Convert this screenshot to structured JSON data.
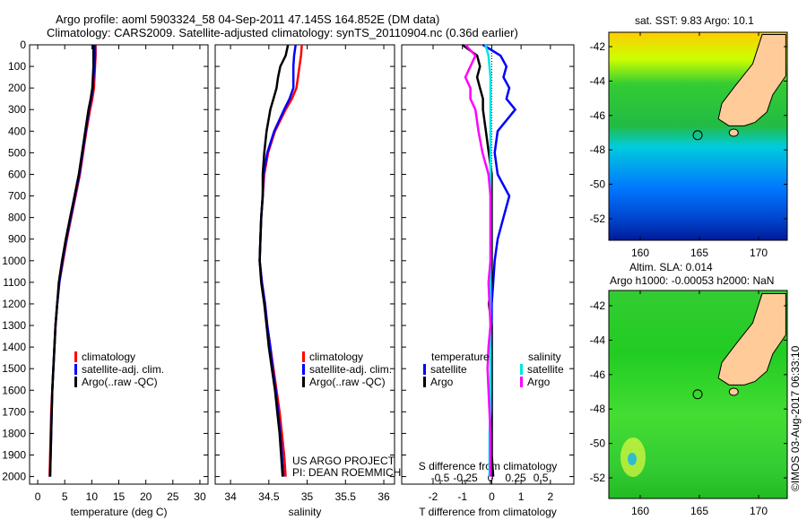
{
  "title": {
    "line1": "Argo profile: aoml 5903324_58 04-Sep-2011 47.145S 164.852E (DM data)",
    "line2": "Climatology: CARS2009. Satellite-adjusted climatology: synTS_20110904.nc (0.36d earlier)"
  },
  "colors": {
    "climatology": "#ff0000",
    "satellite": "#0000ff",
    "argo": "#000000",
    "s_satellite": "#00e5e5",
    "s_argo": "#ff00ff",
    "land": "#ffcc99"
  },
  "chart_data": [
    {
      "type": "line",
      "id": "temperature",
      "xlabel": "temperature (deg C)",
      "ylabel": "depth",
      "xlim": [
        -1.5,
        31.5
      ],
      "ylim": [
        2035,
        0
      ],
      "xticks": [
        0,
        5,
        10,
        15,
        20,
        25,
        30
      ],
      "yticks": [
        0,
        100,
        200,
        300,
        400,
        500,
        600,
        700,
        800,
        900,
        1000,
        1100,
        1200,
        1300,
        1400,
        1500,
        1600,
        1700,
        1800,
        1900,
        2000
      ],
      "depth": [
        0,
        50,
        100,
        150,
        200,
        250,
        300,
        400,
        500,
        600,
        700,
        800,
        900,
        1000,
        1100,
        1200,
        1300,
        1400,
        1500,
        1600,
        1700,
        1800,
        1900,
        2000
      ],
      "series": [
        {
          "name": "climatology",
          "color": "#ff0000",
          "values": [
            10.7,
            10.7,
            10.6,
            10.5,
            10.4,
            10.1,
            9.7,
            9.0,
            8.4,
            7.8,
            7.0,
            6.2,
            5.4,
            4.7,
            4.0,
            3.6,
            3.3,
            3.1,
            2.9,
            2.7,
            2.5,
            2.4,
            2.3,
            2.2
          ]
        },
        {
          "name": "satellite-adj. clim.",
          "color": "#0000ff",
          "values": [
            10.6,
            10.6,
            10.5,
            10.3,
            10.2,
            9.9,
            9.5,
            8.9,
            8.3,
            7.7,
            6.9,
            6.1,
            5.3,
            4.6,
            4.0,
            3.6,
            3.3,
            3.1,
            2.9,
            2.7,
            2.6,
            2.5,
            2.4,
            2.3
          ]
        },
        {
          "name": "Argo(..raw -QC)",
          "color": "#000000",
          "values": [
            10.3,
            10.3,
            10.3,
            10.2,
            10.1,
            9.8,
            9.4,
            8.8,
            8.2,
            7.6,
            6.8,
            6.0,
            5.2,
            4.5,
            3.9,
            3.6,
            3.3,
            3.1,
            2.9,
            2.7,
            2.6,
            2.5,
            2.4,
            2.3
          ]
        }
      ]
    },
    {
      "type": "line",
      "id": "salinity",
      "xlabel": "salinity",
      "ylabel": "depth",
      "xlim": [
        33.8,
        36.14
      ],
      "ylim": [
        2035,
        0
      ],
      "xticks": [
        34,
        34.5,
        35,
        35.5,
        36
      ],
      "depth": [
        0,
        50,
        100,
        150,
        200,
        250,
        300,
        400,
        500,
        600,
        700,
        800,
        900,
        1000,
        1100,
        1200,
        1300,
        1400,
        1500,
        1600,
        1700,
        1800,
        1900,
        2000
      ],
      "series": [
        {
          "name": "climatology",
          "color": "#ff0000",
          "values": [
            34.93,
            34.92,
            34.9,
            34.88,
            34.86,
            34.8,
            34.72,
            34.58,
            34.49,
            34.44,
            34.42,
            34.4,
            34.39,
            34.38,
            34.41,
            34.45,
            34.48,
            34.52,
            34.56,
            34.6,
            34.64,
            34.67,
            34.7,
            34.72
          ]
        },
        {
          "name": "satellite-adj. clim.",
          "color": "#0000ff",
          "values": [
            34.85,
            34.83,
            34.82,
            34.82,
            34.82,
            34.77,
            34.7,
            34.57,
            34.48,
            34.43,
            34.42,
            34.4,
            34.39,
            34.38,
            34.41,
            34.45,
            34.48,
            34.52,
            34.55,
            34.59,
            34.62,
            34.65,
            34.67,
            34.69
          ]
        },
        {
          "name": "Argo(..raw -QC)",
          "color": "#000000",
          "values": [
            34.75,
            34.72,
            34.65,
            34.62,
            34.6,
            34.56,
            34.52,
            34.47,
            34.44,
            34.42,
            34.42,
            34.4,
            34.39,
            34.38,
            34.4,
            34.44,
            34.47,
            34.5,
            34.54,
            34.58,
            34.61,
            34.64,
            34.66,
            34.68
          ]
        }
      ],
      "annotation": [
        "US ARGO PROJECT",
        "PI: DEAN ROEMMICH"
      ]
    },
    {
      "type": "line",
      "id": "difference",
      "xlabel": "T difference from climatology",
      "x2label": "S difference from climatology",
      "xlim": [
        -3.07,
        2.8
      ],
      "x2lim": [
        -0.884,
        0.83
      ],
      "ylim": [
        2035,
        0
      ],
      "xticks": [
        -2,
        -1,
        0,
        1,
        2
      ],
      "x2ticks": [
        "-0.5",
        "-0.25",
        "0",
        "0.25",
        "0.5"
      ],
      "depth": [
        0,
        50,
        100,
        150,
        200,
        250,
        300,
        400,
        500,
        600,
        700,
        800,
        900,
        1000,
        1100,
        1200,
        1300,
        1400,
        1500,
        1600,
        1700,
        1800,
        1900,
        2000
      ],
      "legend_headers": [
        "temperature",
        "salinity"
      ],
      "series": [
        {
          "name": "satellite",
          "group": "temperature",
          "axis": "T",
          "color": "#0000ff",
          "values": [
            -0.3,
            0.3,
            0.5,
            0.4,
            0.6,
            0.5,
            0.8,
            0.2,
            0.1,
            0.2,
            0.6,
            0.4,
            0.2,
            0.1,
            0.05,
            0,
            0,
            0,
            0,
            0,
            0,
            0,
            0,
            0
          ]
        },
        {
          "name": "Argo",
          "group": "temperature",
          "axis": "T",
          "color": "#000000",
          "values": [
            -1.0,
            -0.5,
            -0.4,
            -0.5,
            -0.4,
            -0.3,
            -0.3,
            -0.2,
            -0.1,
            0,
            0,
            0,
            0,
            0,
            0,
            -0.1,
            0,
            0,
            0,
            0,
            0,
            0,
            0,
            0.05
          ]
        },
        {
          "name": "satellite",
          "group": "salinity",
          "axis": "S",
          "color": "#00e5e5",
          "values": [
            -0.05,
            -0.02,
            -0.01,
            0,
            0,
            0,
            0,
            0,
            0,
            0,
            0,
            0,
            0,
            0,
            0,
            0,
            0,
            0,
            0,
            0,
            0,
            -0.01,
            -0.01,
            -0.01
          ]
        },
        {
          "name": "Argo",
          "group": "salinity",
          "axis": "S",
          "color": "#ff00ff",
          "values": [
            -0.25,
            -0.15,
            -0.2,
            -0.25,
            -0.2,
            -0.2,
            -0.15,
            -0.12,
            -0.08,
            -0.02,
            0,
            0,
            0,
            0,
            -0.02,
            -0.01,
            0,
            -0.02,
            -0.03,
            -0.02,
            -0.01,
            0,
            0,
            0
          ]
        }
      ]
    }
  ],
  "maps": [
    {
      "title": [
        "sat. SST: 9.83 Argo: 10.1"
      ],
      "lat_ticks": [
        "-42",
        "-44",
        "-46",
        "-48",
        "-50",
        "-52"
      ],
      "lon_ticks": [
        "160",
        "165",
        "170"
      ],
      "float_lon": 164.852,
      "float_lat": -47.145
    },
    {
      "title": [
        "Altim. SLA: 0.014",
        "Argo h1000: -0.00053 h2000: NaN"
      ],
      "lat_ticks": [
        "-42",
        "-44",
        "-46",
        "-48",
        "-50",
        "-52"
      ],
      "lon_ticks": [
        "160",
        "165",
        "170"
      ],
      "float_lon": 164.852,
      "float_lat": -47.145
    }
  ],
  "credit": "©IMOS 03-Aug-2017 06:33:10"
}
